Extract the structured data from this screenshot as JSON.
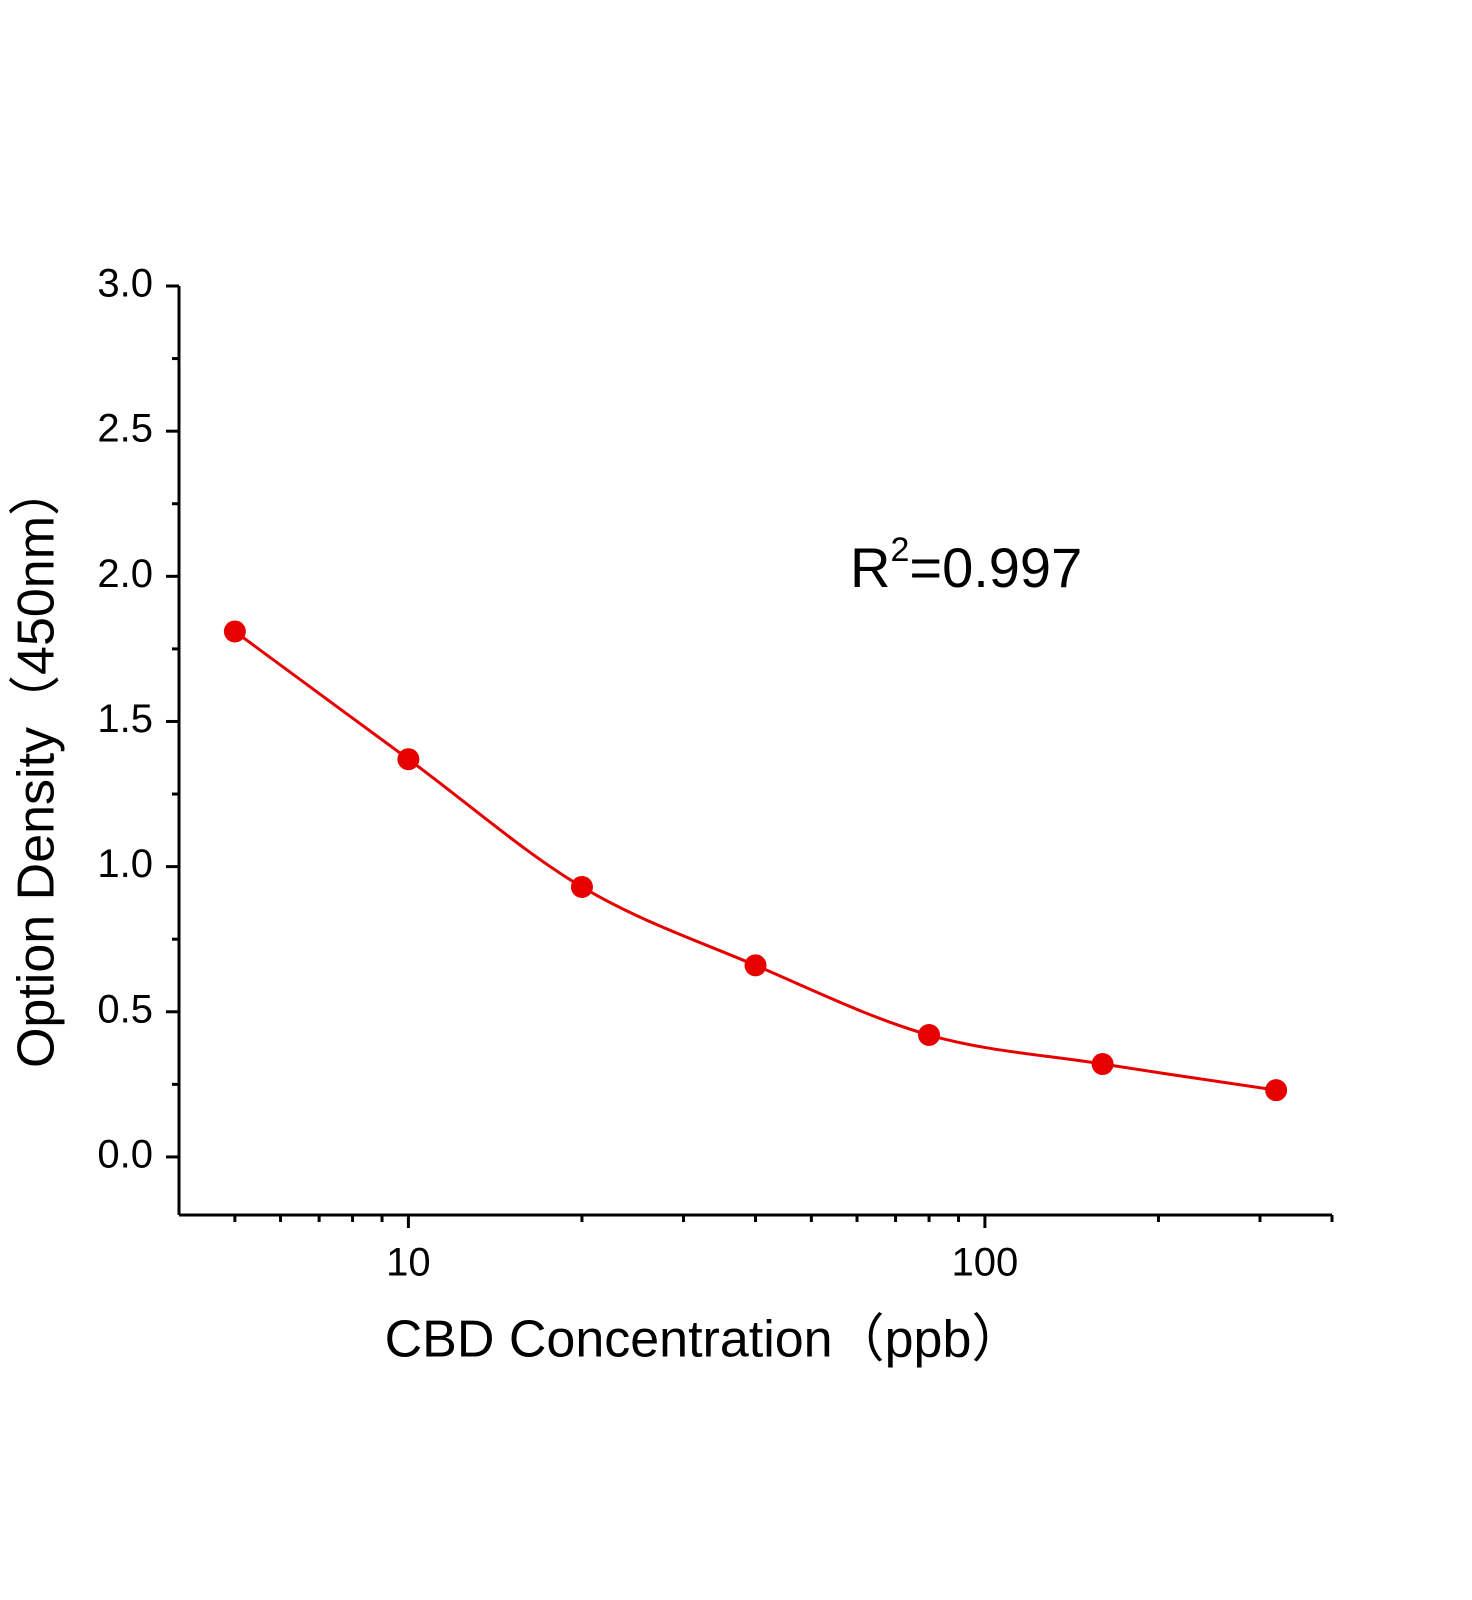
{
  "chart_data": {
    "type": "scatter",
    "x_label": "CBD Concentration（ppb）",
    "y_label": "Option Density（450nm）",
    "annotation": {
      "base": "R",
      "superscript": "2",
      "text": "=0.997"
    },
    "series": [
      {
        "x": [
          5,
          10,
          20,
          40,
          80,
          160,
          320
        ],
        "values": [
          1.81,
          1.37,
          0.93,
          0.66,
          0.42,
          0.32,
          0.23
        ],
        "color": "#e60000"
      }
    ],
    "fit_curve": true,
    "xlog": true,
    "xlim": [
      4,
      400
    ],
    "xticks": [
      10,
      100
    ],
    "xminorticks": [
      5,
      6,
      7,
      8,
      9,
      20,
      30,
      40,
      50,
      60,
      70,
      80,
      90,
      200,
      300,
      400
    ],
    "ylim": [
      -0.2,
      3
    ],
    "yticks": [
      {
        "value": 0,
        "label": "0.0"
      },
      0.5,
      {
        "value": 1,
        "label": "1.0"
      },
      1.5,
      {
        "value": 2,
        "label": "2.0"
      },
      2.5,
      {
        "value": 3,
        "label": "3.0"
      }
    ],
    "yminorticks": [
      0.25,
      0.75,
      1.25,
      1.75,
      2.25,
      2.75
    ]
  }
}
